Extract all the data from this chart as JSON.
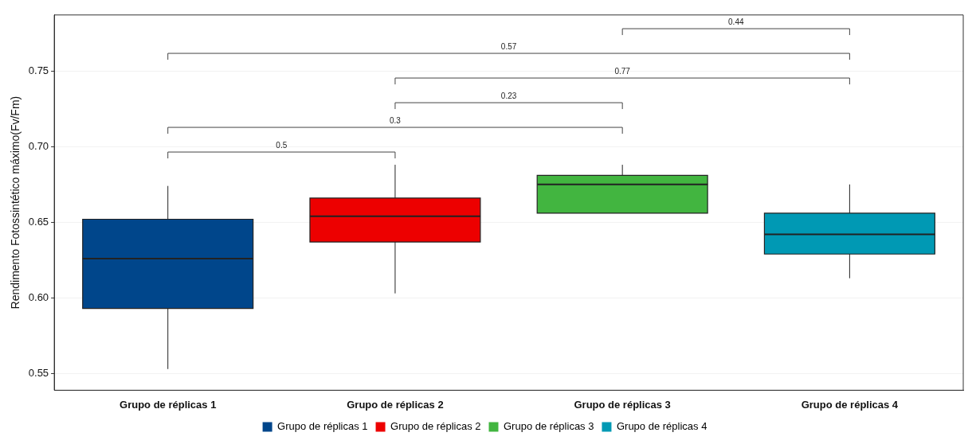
{
  "chart_data": {
    "type": "box",
    "ylabel": "Rendimento Fotossintético máximo(Fv/Fm)",
    "categories": [
      "Grupo de réplicas 1",
      "Grupo de réplicas 2",
      "Grupo de réplicas 3",
      "Grupo de réplicas 4"
    ],
    "series": [
      {
        "name": "Grupo de réplicas 1",
        "color": "#00468b",
        "boxes": [
          {
            "low": 0.553,
            "q1": 0.593,
            "median": 0.626,
            "q3": 0.652,
            "high": 0.674
          },
          null,
          null,
          null
        ]
      },
      {
        "name": "Grupo de réplicas 2",
        "color": "#ed0000",
        "boxes": [
          null,
          {
            "low": 0.603,
            "q1": 0.637,
            "median": 0.654,
            "q3": 0.666,
            "high": 0.688
          },
          null,
          null
        ]
      },
      {
        "name": "Grupo de réplicas 3",
        "color": "#42b540",
        "boxes": [
          null,
          null,
          {
            "low": 0.656,
            "q1": 0.656,
            "median": 0.675,
            "q3": 0.681,
            "high": 0.688
          },
          null
        ]
      },
      {
        "name": "Grupo de réplicas 4",
        "color": "#0099b4",
        "boxes": [
          null,
          null,
          null,
          {
            "low": 0.613,
            "q1": 0.629,
            "median": 0.642,
            "q3": 0.656,
            "high": 0.675
          }
        ]
      }
    ],
    "ylim": [
      0.539,
      0.787
    ],
    "yticks": [
      0.55,
      {
        "value": 0.6,
        "label": "0.60"
      },
      0.65,
      {
        "value": 0.7,
        "label": "0.70"
      },
      0.75
    ],
    "annotations": [
      "0.5",
      "0.3",
      "0.23",
      "0.77",
      "0.57",
      "0.44"
    ],
    "grid": "y",
    "legend": "bottom"
  }
}
